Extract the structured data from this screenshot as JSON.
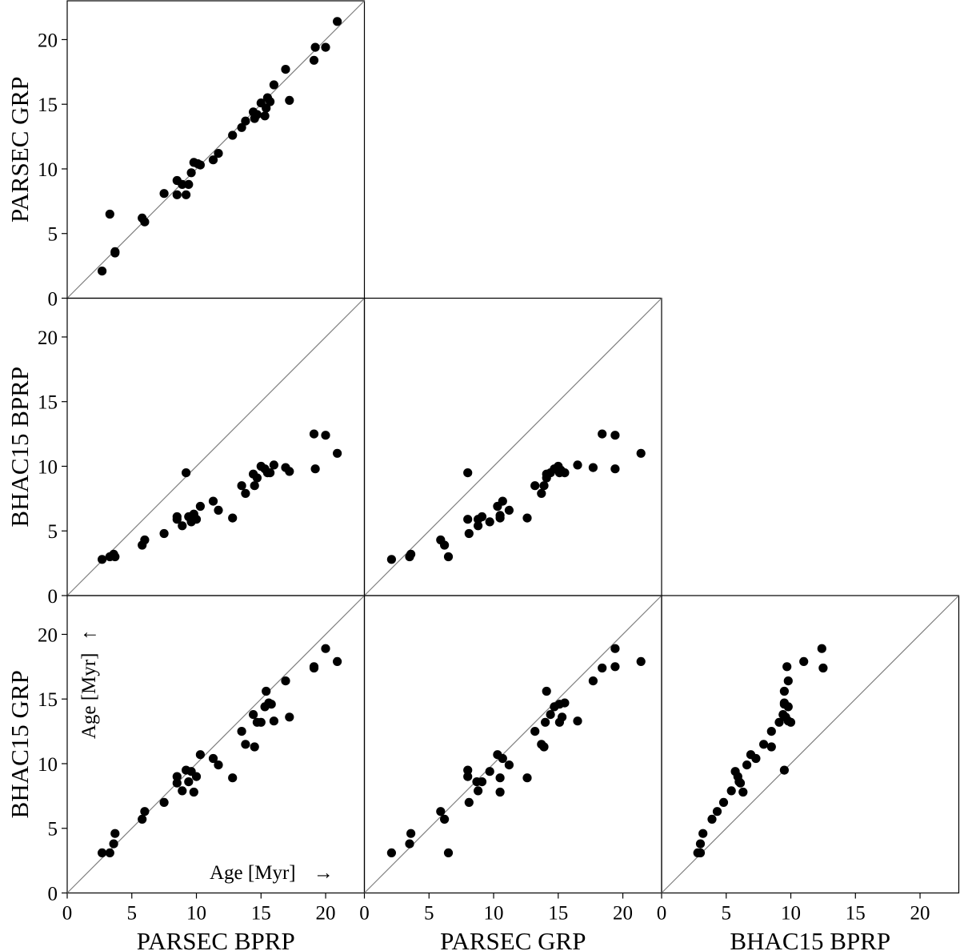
{
  "chart_data": {
    "type": "scatter",
    "layout": "corner-plot",
    "axis_range": [
      0,
      23
    ],
    "ticks": [
      0,
      5,
      10,
      15,
      20
    ],
    "tick_labels": [
      "0",
      "5",
      "10",
      "15",
      "20"
    ],
    "identity_line": true,
    "grid": false,
    "marker_color": "#000000",
    "line_color": "#808080",
    "models": [
      "PARSEC BPRP",
      "PARSEC GRP",
      "BHAC15 BPRP",
      "BHAC15 GRP"
    ],
    "xlabels": [
      "PARSEC BPRP",
      "PARSEC GRP",
      "BHAC15 BPRP"
    ],
    "ylabels": [
      "PARSEC GRP",
      "BHAC15 BPRP",
      "BHAC15 GRP"
    ],
    "annotations": {
      "y_arrow_text": "Age [Myr]",
      "y_arrow_glyph": "↑",
      "x_arrow_text": "Age [Myr]",
      "x_arrow_glyph": "→"
    },
    "panels": [
      {
        "row": 0,
        "col": 0,
        "x_model": "PARSEC BPRP",
        "y_model": "PARSEC GRP",
        "points": [
          [
            2.7,
            2.1
          ],
          [
            3.3,
            6.5
          ],
          [
            3.7,
            3.5
          ],
          [
            3.7,
            3.6
          ],
          [
            5.8,
            6.2
          ],
          [
            6.0,
            5.9
          ],
          [
            7.5,
            8.1
          ],
          [
            8.5,
            8.0
          ],
          [
            8.5,
            9.1
          ],
          [
            8.9,
            8.8
          ],
          [
            9.2,
            8.0
          ],
          [
            9.4,
            8.8
          ],
          [
            9.6,
            9.7
          ],
          [
            9.8,
            10.5
          ],
          [
            10.1,
            10.4
          ],
          [
            10.3,
            10.3
          ],
          [
            11.3,
            10.7
          ],
          [
            11.7,
            11.2
          ],
          [
            12.8,
            12.6
          ],
          [
            13.5,
            13.2
          ],
          [
            13.8,
            13.7
          ],
          [
            14.4,
            14.4
          ],
          [
            14.5,
            13.9
          ],
          [
            14.7,
            14.2
          ],
          [
            15.0,
            15.1
          ],
          [
            15.3,
            14.1
          ],
          [
            15.4,
            14.7
          ],
          [
            15.5,
            15.5
          ],
          [
            15.7,
            15.2
          ],
          [
            16.0,
            16.5
          ],
          [
            16.9,
            17.7
          ],
          [
            17.2,
            15.3
          ],
          [
            19.1,
            18.4
          ],
          [
            19.2,
            19.4
          ],
          [
            20.0,
            19.4
          ],
          [
            20.9,
            21.4
          ]
        ]
      },
      {
        "row": 1,
        "col": 0,
        "x_model": "PARSEC BPRP",
        "y_model": "BHAC15 BPRP",
        "points": [
          [
            2.7,
            2.8
          ],
          [
            3.3,
            3.0
          ],
          [
            3.6,
            3.2
          ],
          [
            3.7,
            3.0
          ],
          [
            5.8,
            3.9
          ],
          [
            6.0,
            4.3
          ],
          [
            7.5,
            4.8
          ],
          [
            8.5,
            5.9
          ],
          [
            8.5,
            6.1
          ],
          [
            8.9,
            5.4
          ],
          [
            9.2,
            9.5
          ],
          [
            9.4,
            6.1
          ],
          [
            9.6,
            5.7
          ],
          [
            9.8,
            6.3
          ],
          [
            10.0,
            5.9
          ],
          [
            10.3,
            6.9
          ],
          [
            11.3,
            7.3
          ],
          [
            11.7,
            6.6
          ],
          [
            12.8,
            6.0
          ],
          [
            13.5,
            8.5
          ],
          [
            13.8,
            7.9
          ],
          [
            14.4,
            9.4
          ],
          [
            14.5,
            8.5
          ],
          [
            14.7,
            9.1
          ],
          [
            15.0,
            10.0
          ],
          [
            15.3,
            9.8
          ],
          [
            15.5,
            9.5
          ],
          [
            15.7,
            9.5
          ],
          [
            16.0,
            10.1
          ],
          [
            16.9,
            9.9
          ],
          [
            17.2,
            9.6
          ],
          [
            19.1,
            12.5
          ],
          [
            19.2,
            9.8
          ],
          [
            20.0,
            12.4
          ],
          [
            20.9,
            11.0
          ]
        ]
      },
      {
        "row": 1,
        "col": 1,
        "x_model": "PARSEC GRP",
        "y_model": "BHAC15 BPRP",
        "points": [
          [
            2.1,
            2.8
          ],
          [
            3.5,
            3.0
          ],
          [
            3.6,
            3.2
          ],
          [
            5.9,
            4.3
          ],
          [
            6.2,
            3.9
          ],
          [
            6.5,
            3.0
          ],
          [
            8.0,
            9.5
          ],
          [
            8.0,
            5.9
          ],
          [
            8.1,
            4.8
          ],
          [
            8.8,
            5.9
          ],
          [
            8.8,
            5.4
          ],
          [
            9.1,
            6.1
          ],
          [
            9.7,
            5.7
          ],
          [
            10.3,
            6.9
          ],
          [
            10.5,
            6.0
          ],
          [
            10.5,
            6.2
          ],
          [
            10.7,
            7.3
          ],
          [
            11.2,
            6.6
          ],
          [
            12.6,
            6.0
          ],
          [
            13.2,
            8.5
          ],
          [
            13.7,
            7.9
          ],
          [
            13.9,
            8.5
          ],
          [
            14.1,
            9.4
          ],
          [
            14.1,
            9.1
          ],
          [
            14.4,
            9.5
          ],
          [
            14.7,
            9.8
          ],
          [
            15.0,
            10.0
          ],
          [
            15.1,
            9.5
          ],
          [
            15.2,
            9.7
          ],
          [
            15.5,
            9.5
          ],
          [
            16.5,
            10.1
          ],
          [
            17.7,
            9.9
          ],
          [
            18.4,
            12.5
          ],
          [
            19.4,
            12.4
          ],
          [
            19.4,
            9.8
          ],
          [
            21.4,
            11.0
          ]
        ]
      },
      {
        "row": 2,
        "col": 0,
        "x_model": "PARSEC BPRP",
        "y_model": "BHAC15 GRP",
        "points": [
          [
            2.7,
            3.1
          ],
          [
            3.3,
            3.1
          ],
          [
            3.6,
            3.8
          ],
          [
            3.7,
            4.6
          ],
          [
            5.8,
            5.7
          ],
          [
            6.0,
            6.3
          ],
          [
            7.5,
            7.0
          ],
          [
            8.5,
            8.5
          ],
          [
            8.5,
            9.0
          ],
          [
            8.9,
            7.9
          ],
          [
            9.2,
            9.5
          ],
          [
            9.4,
            8.6
          ],
          [
            9.6,
            9.4
          ],
          [
            9.8,
            7.8
          ],
          [
            10.0,
            9.0
          ],
          [
            10.3,
            10.7
          ],
          [
            11.3,
            10.4
          ],
          [
            11.7,
            9.9
          ],
          [
            12.8,
            8.9
          ],
          [
            13.5,
            12.5
          ],
          [
            13.8,
            11.5
          ],
          [
            14.4,
            13.8
          ],
          [
            14.5,
            11.3
          ],
          [
            14.7,
            13.2
          ],
          [
            15.0,
            13.2
          ],
          [
            15.3,
            14.4
          ],
          [
            15.4,
            15.6
          ],
          [
            15.6,
            14.7
          ],
          [
            15.8,
            14.6
          ],
          [
            16.0,
            13.3
          ],
          [
            16.9,
            16.4
          ],
          [
            17.2,
            13.6
          ],
          [
            19.1,
            17.5
          ],
          [
            19.1,
            17.4
          ],
          [
            20.0,
            18.9
          ],
          [
            20.9,
            17.9
          ]
        ]
      },
      {
        "row": 2,
        "col": 1,
        "x_model": "PARSEC GRP",
        "y_model": "BHAC15 GRP",
        "points": [
          [
            2.1,
            3.1
          ],
          [
            3.5,
            3.8
          ],
          [
            3.6,
            4.6
          ],
          [
            5.9,
            6.3
          ],
          [
            6.2,
            5.7
          ],
          [
            6.5,
            3.1
          ],
          [
            8.0,
            9.0
          ],
          [
            8.0,
            9.5
          ],
          [
            8.1,
            7.0
          ],
          [
            8.7,
            8.6
          ],
          [
            8.8,
            7.9
          ],
          [
            9.1,
            8.6
          ],
          [
            9.7,
            9.4
          ],
          [
            10.3,
            10.7
          ],
          [
            10.5,
            8.9
          ],
          [
            10.5,
            7.8
          ],
          [
            10.7,
            10.4
          ],
          [
            11.2,
            9.9
          ],
          [
            12.6,
            8.9
          ],
          [
            13.2,
            12.5
          ],
          [
            13.7,
            11.5
          ],
          [
            13.9,
            11.3
          ],
          [
            14.0,
            13.2
          ],
          [
            14.1,
            15.6
          ],
          [
            14.4,
            13.8
          ],
          [
            14.7,
            14.4
          ],
          [
            15.1,
            13.2
          ],
          [
            15.1,
            14.6
          ],
          [
            15.3,
            13.6
          ],
          [
            15.5,
            14.7
          ],
          [
            16.5,
            13.3
          ],
          [
            17.7,
            16.4
          ],
          [
            18.4,
            17.4
          ],
          [
            19.4,
            17.5
          ],
          [
            19.4,
            18.9
          ],
          [
            21.4,
            17.9
          ]
        ]
      },
      {
        "row": 2,
        "col": 2,
        "x_model": "BHAC15 BPRP",
        "y_model": "BHAC15 GRP",
        "points": [
          [
            2.8,
            3.1
          ],
          [
            3.0,
            3.1
          ],
          [
            3.0,
            3.8
          ],
          [
            3.2,
            4.6
          ],
          [
            3.9,
            5.7
          ],
          [
            4.3,
            6.3
          ],
          [
            4.8,
            7.0
          ],
          [
            5.4,
            7.9
          ],
          [
            5.7,
            9.4
          ],
          [
            5.9,
            9.0
          ],
          [
            6.0,
            8.6
          ],
          [
            6.1,
            8.5
          ],
          [
            6.3,
            7.8
          ],
          [
            6.6,
            9.9
          ],
          [
            6.9,
            10.7
          ],
          [
            7.3,
            10.4
          ],
          [
            7.9,
            11.5
          ],
          [
            8.5,
            12.5
          ],
          [
            8.5,
            11.3
          ],
          [
            9.1,
            13.2
          ],
          [
            9.4,
            13.8
          ],
          [
            9.5,
            15.6
          ],
          [
            9.5,
            14.7
          ],
          [
            9.5,
            9.5
          ],
          [
            9.5,
            14.6
          ],
          [
            9.6,
            13.6
          ],
          [
            9.7,
            17.5
          ],
          [
            9.8,
            14.4
          ],
          [
            9.8,
            16.4
          ],
          [
            9.8,
            13.3
          ],
          [
            10.0,
            13.2
          ],
          [
            11.0,
            17.9
          ],
          [
            12.4,
            18.9
          ],
          [
            12.5,
            17.4
          ]
        ]
      }
    ]
  }
}
